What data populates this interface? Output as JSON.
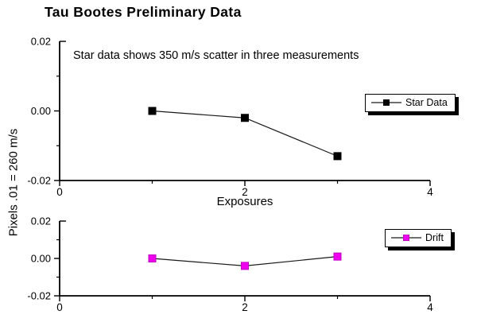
{
  "page": {
    "title": "Tau Bootes Preliminary Data",
    "y_axis_label": "Pixels .01 = 260 m/s"
  },
  "colors": {
    "background": "#ffffff",
    "axis": "#000000",
    "text": "#000000",
    "star_marker": "#000000",
    "drift_marker": "#ee00ee",
    "drift_marker_border": "#c000c0",
    "data_line": "#1a1a1a",
    "legend_shadow": "#000000"
  },
  "chart_data": [
    {
      "type": "line",
      "title": "",
      "annotation": "Star data shows 350 m/s scatter in three measurements",
      "xlabel": "Exposures",
      "ylabel": "Pixels .01 = 260 m/s",
      "xlim": [
        0,
        4
      ],
      "ylim": [
        -0.02,
        0.02
      ],
      "grid": false,
      "legend": {
        "label": "Star Data",
        "position": "upper right"
      },
      "x_major_ticks": [
        0,
        2,
        4
      ],
      "x_tick_labels": [
        "0",
        "2",
        "4"
      ],
      "x_minor_ticks": [
        1,
        3
      ],
      "y_major_ticks": [
        0.02,
        0.0,
        -0.02
      ],
      "y_tick_labels": [
        "0.02",
        "0.00",
        "-0.02"
      ],
      "y_minor_ticks": [
        0.01,
        -0.01
      ],
      "series": [
        {
          "name": "Star Data",
          "x": [
            1,
            2,
            3
          ],
          "y": [
            0.0,
            -0.002,
            -0.013
          ],
          "marker": "square",
          "marker_color": "#000000",
          "marker_border": "#000000",
          "line_color": "#1a1a1a"
        }
      ]
    },
    {
      "type": "line",
      "title": "",
      "annotation": "",
      "xlabel": "",
      "ylabel": "",
      "xlim": [
        0,
        4
      ],
      "ylim": [
        -0.02,
        0.02
      ],
      "grid": false,
      "legend": {
        "label": "Drift",
        "position": "upper right"
      },
      "x_major_ticks": [
        0,
        2,
        4
      ],
      "x_tick_labels": [
        "0",
        "2",
        "4"
      ],
      "x_minor_ticks": [
        1,
        3
      ],
      "y_major_ticks": [
        0.02,
        0.0,
        -0.02
      ],
      "y_tick_labels": [
        "0.02",
        "0.00",
        "-0.02"
      ],
      "y_minor_ticks": [
        0.01,
        -0.01
      ],
      "series": [
        {
          "name": "Drift",
          "x": [
            1,
            2,
            3
          ],
          "y": [
            0.0,
            -0.004,
            0.001
          ],
          "marker": "square",
          "marker_color": "#ee00ee",
          "marker_border": "#c000c0",
          "line_color": "#1a1a1a"
        }
      ]
    }
  ]
}
